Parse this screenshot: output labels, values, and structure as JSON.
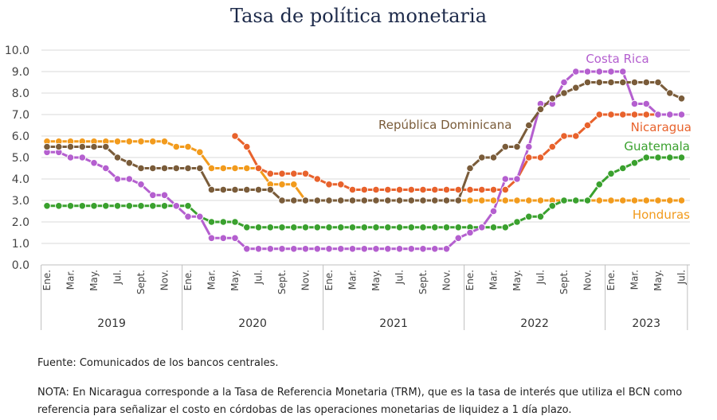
{
  "title": "Tasa de política monetaria",
  "source": "Fuente: Comunicados de los bancos centrales.",
  "note_line1": "NOTA: En Nicaragua corresponde a la Tasa de Referencia Monetaria (TRM), que es la tasa de interés que utiliza el BCN como",
  "note_line2": "referencia para señalizar el costo en córdobas de las operaciones monetarias de liquidez a 1 día plazo.",
  "chart_data": {
    "type": "line",
    "ylim": [
      0,
      10
    ],
    "yticks": [
      "0.0",
      "1.0",
      "2.0",
      "3.0",
      "4.0",
      "5.0",
      "6.0",
      "7.0",
      "8.0",
      "9.0",
      "10.0"
    ],
    "x": [
      "2019-01",
      "2019-02",
      "2019-03",
      "2019-04",
      "2019-05",
      "2019-06",
      "2019-07",
      "2019-08",
      "2019-09",
      "2019-10",
      "2019-11",
      "2019-12",
      "2020-01",
      "2020-02",
      "2020-03",
      "2020-04",
      "2020-05",
      "2020-06",
      "2020-07",
      "2020-08",
      "2020-09",
      "2020-10",
      "2020-11",
      "2020-12",
      "2021-01",
      "2021-02",
      "2021-03",
      "2021-04",
      "2021-05",
      "2021-06",
      "2021-07",
      "2021-08",
      "2021-09",
      "2021-10",
      "2021-11",
      "2021-12",
      "2022-01",
      "2022-02",
      "2022-03",
      "2022-04",
      "2022-05",
      "2022-06",
      "2022-07",
      "2022-08",
      "2022-09",
      "2022-10",
      "2022-11",
      "2022-12",
      "2023-01",
      "2023-02",
      "2023-03",
      "2023-04",
      "2023-05",
      "2023-06",
      "2023-07"
    ],
    "month_tick_labels": [
      "Ene.",
      "Mar.",
      "May.",
      "Jul.",
      "Sept.",
      "Nov."
    ],
    "years": [
      {
        "label": "2019",
        "months": 12
      },
      {
        "label": "2020",
        "months": 12
      },
      {
        "label": "2021",
        "months": 12
      },
      {
        "label": "2022",
        "months": 12
      },
      {
        "label": "2023",
        "months": 7
      }
    ],
    "series": [
      {
        "name": "Honduras",
        "color": "#f29b1d",
        "values": [
          5.75,
          5.75,
          5.75,
          5.75,
          5.75,
          5.75,
          5.75,
          5.75,
          5.75,
          5.75,
          5.75,
          5.5,
          5.5,
          5.25,
          4.5,
          4.5,
          4.5,
          4.5,
          4.5,
          3.75,
          3.75,
          3.75,
          3.0,
          3.0,
          3.0,
          3.0,
          3.0,
          3.0,
          3.0,
          3.0,
          3.0,
          3.0,
          3.0,
          3.0,
          3.0,
          3.0,
          3.0,
          3.0,
          3.0,
          3.0,
          3.0,
          3.0,
          3.0,
          3.0,
          3.0,
          3.0,
          3.0,
          3.0,
          3.0,
          3.0,
          3.0,
          3.0,
          3.0,
          3.0,
          3.0
        ]
      },
      {
        "name": "Nicaragua",
        "color": "#e8622c",
        "values": [
          null,
          null,
          null,
          null,
          null,
          null,
          null,
          null,
          null,
          null,
          null,
          null,
          null,
          null,
          null,
          null,
          6.0,
          5.5,
          4.5,
          4.25,
          4.25,
          4.25,
          4.25,
          4.0,
          3.75,
          3.75,
          3.5,
          3.5,
          3.5,
          3.5,
          3.5,
          3.5,
          3.5,
          3.5,
          3.5,
          3.5,
          3.5,
          3.5,
          3.5,
          3.5,
          4.0,
          5.0,
          5.0,
          5.5,
          6.0,
          6.0,
          6.5,
          7.0,
          7.0,
          7.0,
          7.0,
          7.0,
          7.0,
          7.0,
          7.0
        ]
      },
      {
        "name": "Guatemala",
        "color": "#3aa12e",
        "values": [
          2.75,
          2.75,
          2.75,
          2.75,
          2.75,
          2.75,
          2.75,
          2.75,
          2.75,
          2.75,
          2.75,
          2.75,
          2.75,
          2.25,
          2.0,
          2.0,
          2.0,
          1.75,
          1.75,
          1.75,
          1.75,
          1.75,
          1.75,
          1.75,
          1.75,
          1.75,
          1.75,
          1.75,
          1.75,
          1.75,
          1.75,
          1.75,
          1.75,
          1.75,
          1.75,
          1.75,
          1.75,
          1.75,
          1.75,
          1.75,
          2.0,
          2.25,
          2.25,
          2.75,
          3.0,
          3.0,
          3.0,
          3.75,
          4.25,
          4.5,
          4.75,
          5.0,
          5.0,
          5.0,
          5.0
        ]
      },
      {
        "name": "Costa Rica",
        "color": "#b45fcf",
        "values": [
          5.25,
          5.25,
          5.0,
          5.0,
          4.75,
          4.5,
          4.0,
          4.0,
          3.75,
          3.25,
          3.25,
          2.75,
          2.25,
          2.25,
          1.25,
          1.25,
          1.25,
          0.75,
          0.75,
          0.75,
          0.75,
          0.75,
          0.75,
          0.75,
          0.75,
          0.75,
          0.75,
          0.75,
          0.75,
          0.75,
          0.75,
          0.75,
          0.75,
          0.75,
          0.75,
          1.25,
          1.5,
          1.75,
          2.5,
          4.0,
          4.0,
          5.5,
          7.5,
          7.5,
          8.5,
          9.0,
          9.0,
          9.0,
          9.0,
          9.0,
          7.5,
          7.5,
          7.0,
          7.0,
          7.0
        ]
      },
      {
        "name": "República Dominicana",
        "color": "#7a5c3a",
        "values": [
          5.5,
          5.5,
          5.5,
          5.5,
          5.5,
          5.5,
          5.0,
          4.75,
          4.5,
          4.5,
          4.5,
          4.5,
          4.5,
          4.5,
          3.5,
          3.5,
          3.5,
          3.5,
          3.5,
          3.5,
          3.0,
          3.0,
          3.0,
          3.0,
          3.0,
          3.0,
          3.0,
          3.0,
          3.0,
          3.0,
          3.0,
          3.0,
          3.0,
          3.0,
          3.0,
          3.0,
          4.5,
          5.0,
          5.0,
          5.5,
          5.5,
          6.5,
          7.25,
          7.75,
          8.0,
          8.25,
          8.5,
          8.5,
          8.5,
          8.5,
          8.5,
          8.5,
          8.5,
          8.0,
          7.75
        ]
      }
    ],
    "labels": [
      {
        "text": "Costa Rica",
        "series": 3
      },
      {
        "text": "República Dominicana",
        "series": 4
      },
      {
        "text": "Nicaragua",
        "series": 1
      },
      {
        "text": "Guatemala",
        "series": 2
      },
      {
        "text": "Honduras",
        "series": 0
      }
    ]
  }
}
